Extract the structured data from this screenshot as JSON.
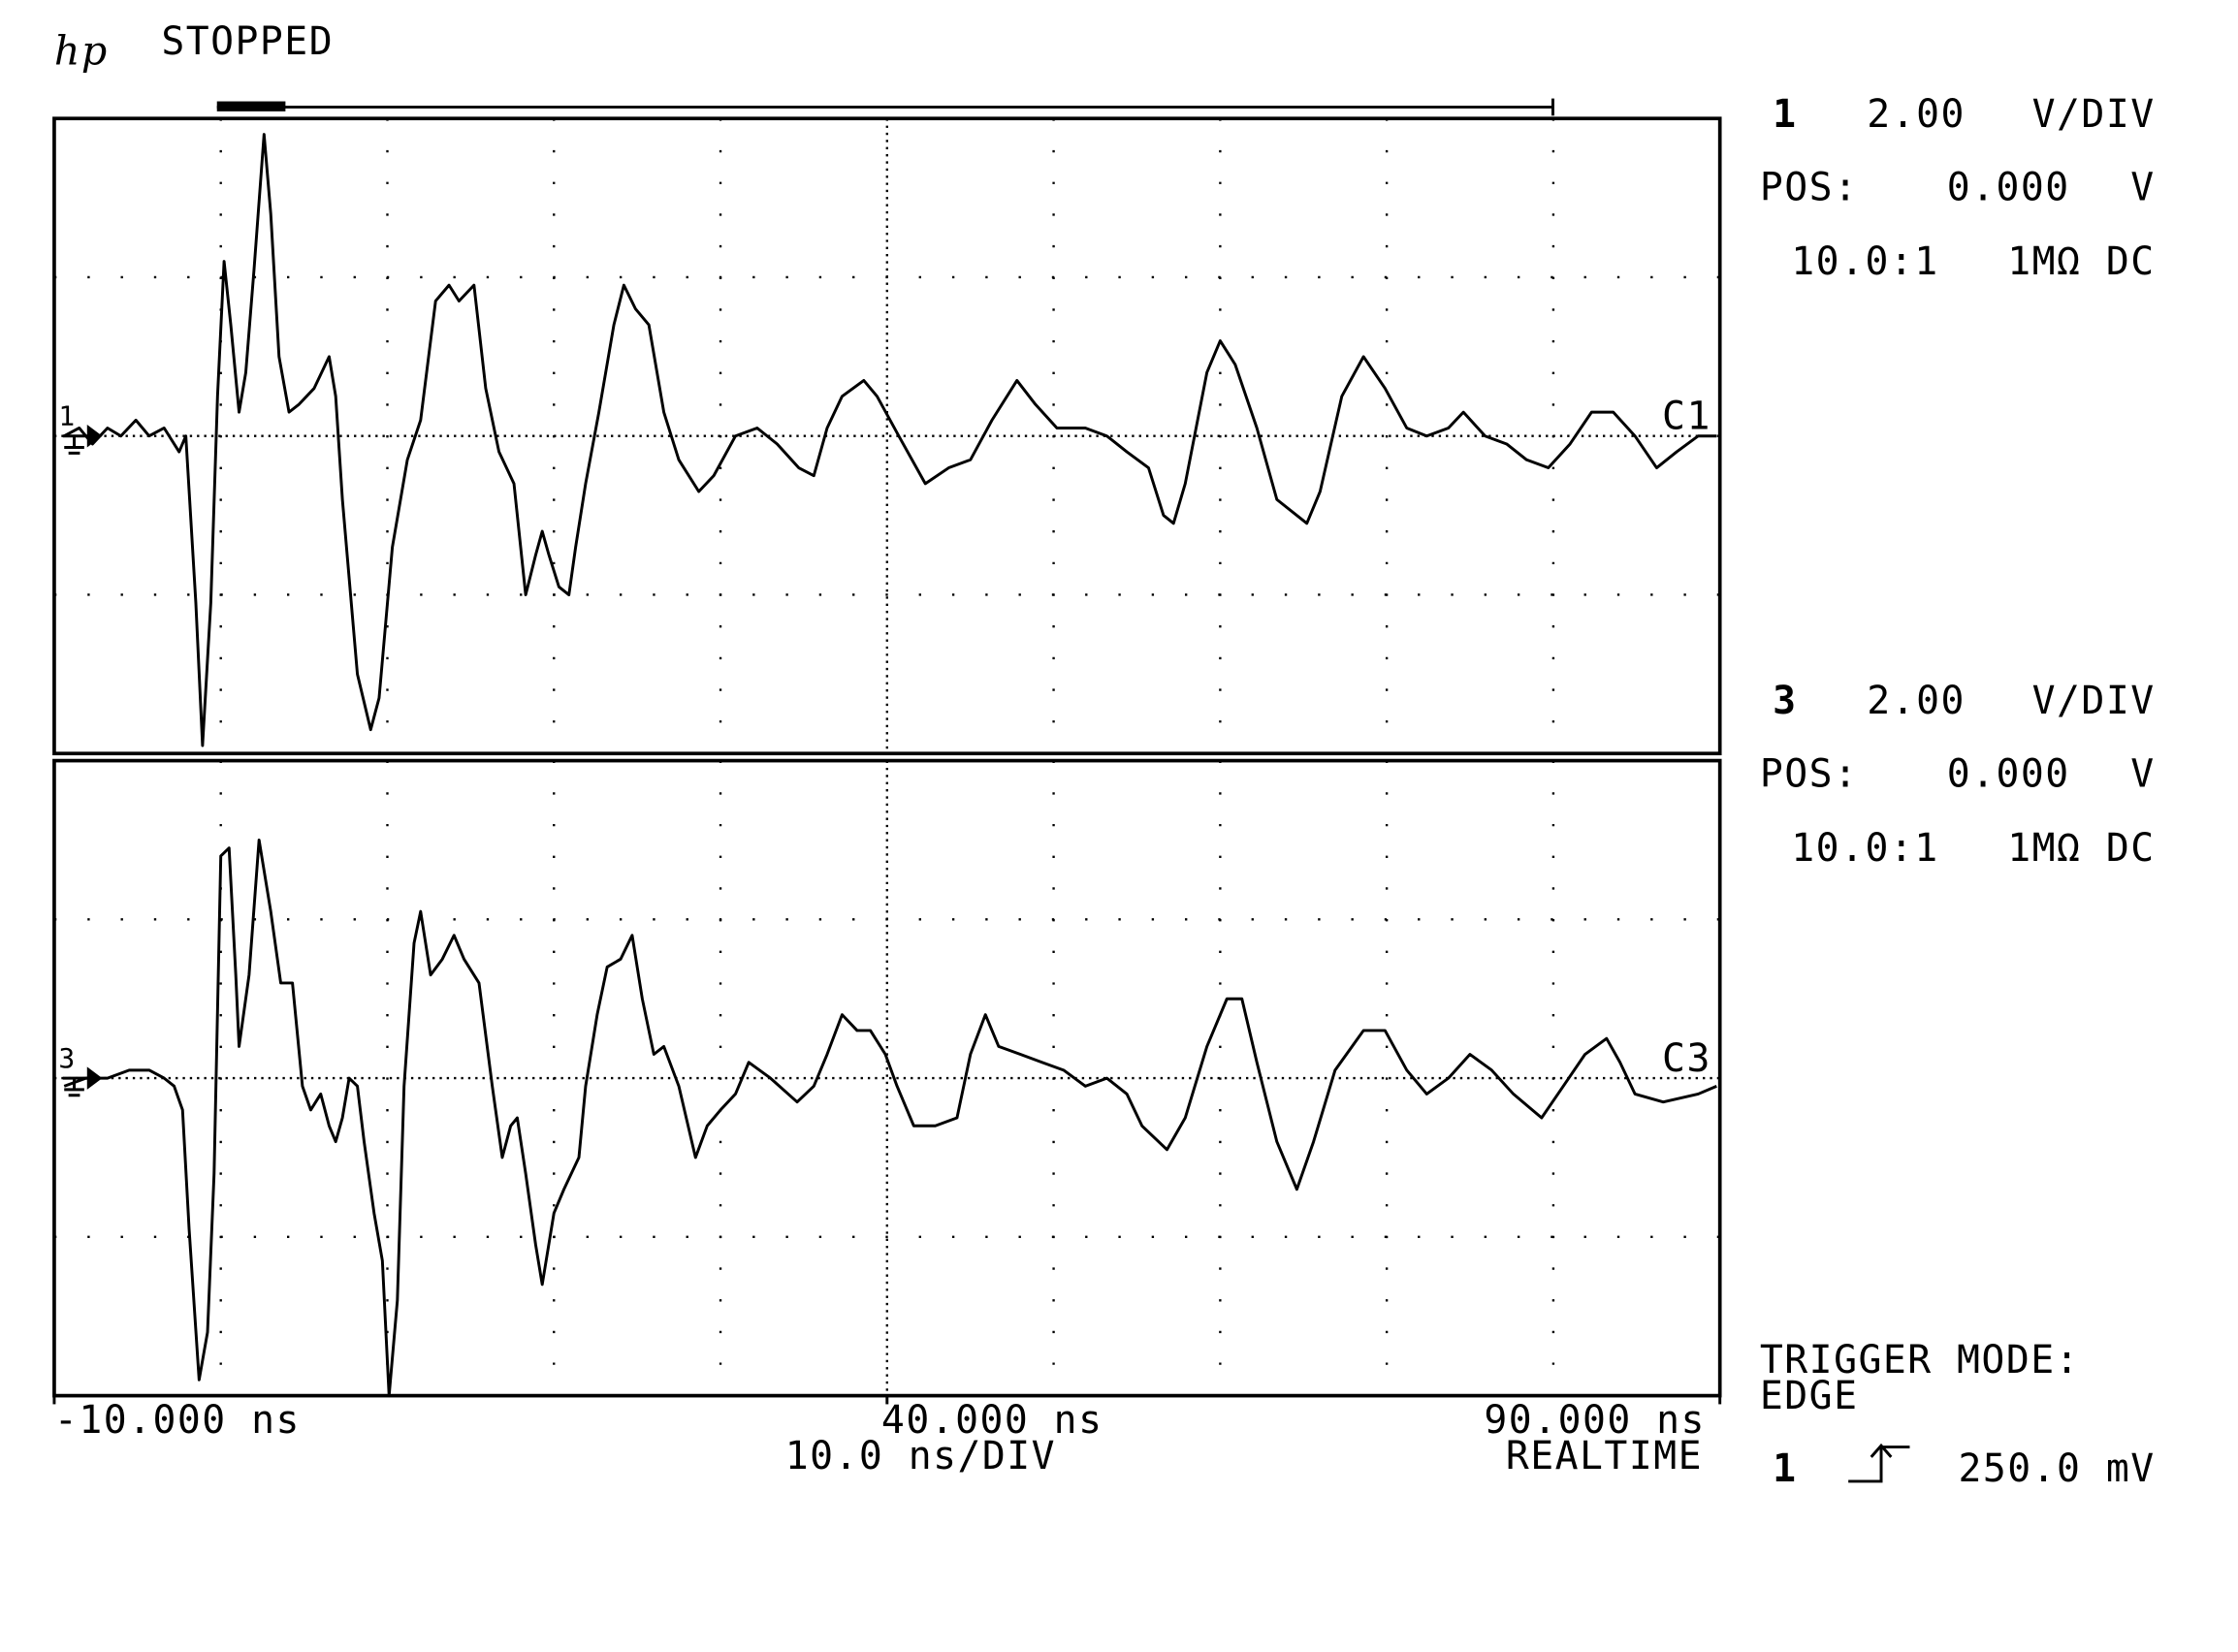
{
  "header": {
    "logo": "hp",
    "status": "STOPPED"
  },
  "channels": [
    {
      "number": "1",
      "scale": "2.00",
      "scale_unit": "V/DIV",
      "pos_label": "POS:",
      "pos": "0.000",
      "pos_unit": "V",
      "probe": "10.0:1",
      "coupling": "1MΩ DC"
    },
    {
      "number": "3",
      "scale": "2.00",
      "scale_unit": "V/DIV",
      "pos_label": "POS:",
      "pos": "0.000",
      "pos_unit": "V",
      "probe": "10.0:1",
      "coupling": "1MΩ DC"
    }
  ],
  "trigger": {
    "title": "TRIGGER MODE:",
    "mode": "EDGE",
    "source": "1",
    "level": "250.0 mV"
  },
  "timebase": {
    "scale": "10.0 ns/DIV",
    "mode": "REALTIME"
  },
  "chart_data": [
    {
      "type": "line",
      "x": [
        -9.4,
        -8.5,
        -7.7,
        -6.8,
        -6.0,
        -5.1,
        -4.3,
        -3.4,
        -2.5,
        -2.1,
        -1.5,
        -1.1,
        -0.6,
        -0.2,
        0.2,
        0.6,
        1.1,
        1.5,
        2.0,
        2.6,
        3.0,
        3.5,
        4.1,
        4.7,
        5.6,
        6.5,
        6.9,
        7.3,
        8.2,
        9.0,
        9.5,
        10.3,
        11.2,
        12.0,
        12.9,
        13.7,
        14.3,
        15.2,
        15.9,
        16.7,
        17.6,
        18.3,
        18.9,
        19.3,
        19.7,
        20.3,
        20.9,
        21.3,
        21.9,
        22.7,
        23.6,
        24.2,
        24.9,
        25.7,
        26.6,
        27.5,
        28.7,
        29.6,
        30.9,
        32.2,
        33.4,
        34.7,
        35.6,
        36.4,
        37.3,
        38.6,
        39.4,
        40.7,
        42.3,
        43.7,
        45.0,
        46.3,
        47.8,
        48.9,
        50.2,
        51.9,
        53.2,
        54.4,
        55.7,
        56.6,
        57.2,
        57.9,
        59.2,
        60.0,
        60.9,
        62.2,
        63.4,
        65.2,
        66.0,
        67.3,
        68.6,
        69.9,
        71.2,
        72.4,
        73.7,
        74.6,
        75.9,
        77.2,
        78.4,
        79.7,
        81.0,
        82.3,
        83.6,
        84.9,
        86.2,
        87.4,
        88.7,
        89.8
      ],
      "series": [
        {
          "name": "C1",
          "color": "#000000",
          "values": [
            0,
            0.1,
            -0.1,
            0.1,
            0,
            0.2,
            0,
            0.1,
            -0.2,
            0,
            -2.1,
            -3.9,
            -2.1,
            0.5,
            2.2,
            1.4,
            0.3,
            0.8,
            2.1,
            3.8,
            2.8,
            1.0,
            0.3,
            0.4,
            0.6,
            1.0,
            0.5,
            -0.8,
            -3.0,
            -3.7,
            -3.3,
            -1.4,
            -0.3,
            0.2,
            1.7,
            1.9,
            1.7,
            1.9,
            0.6,
            -0.2,
            -0.6,
            -2.0,
            -1.5,
            -1.2,
            -1.5,
            -1.9,
            -2.0,
            -1.4,
            -0.6,
            0.3,
            1.4,
            1.9,
            1.6,
            1.4,
            0.3,
            -0.3,
            -0.7,
            -0.5,
            0,
            0.1,
            -0.1,
            -0.4,
            -0.5,
            0.1,
            0.5,
            0.7,
            0.5,
            0,
            -0.6,
            -0.4,
            -0.3,
            0.2,
            0.7,
            0.4,
            0.1,
            0.1,
            0,
            -0.2,
            -0.4,
            -1.0,
            -1.1,
            -0.6,
            0.8,
            1.2,
            0.9,
            0.1,
            -0.8,
            -1.1,
            -0.7,
            0.5,
            1.0,
            0.6,
            0.1,
            0,
            0.1,
            0.3,
            0,
            -0.1,
            -0.3,
            -0.4,
            -0.1,
            0.3,
            0.3,
            0,
            -0.4,
            -0.2,
            0,
            0
          ]
        }
      ],
      "xlim": [
        -10,
        90
      ],
      "ylim": [
        -4,
        4
      ]
    },
    {
      "type": "line",
      "x": [
        -9.4,
        -8.1,
        -6.8,
        -5.5,
        -4.3,
        -3.4,
        -2.8,
        -2.3,
        -1.9,
        -1.3,
        -0.8,
        -0.4,
        0.0,
        0.5,
        0.9,
        1.1,
        1.7,
        2.3,
        3.0,
        3.6,
        4.3,
        4.9,
        5.4,
        6.0,
        6.5,
        6.9,
        7.3,
        7.7,
        8.2,
        8.6,
        9.2,
        9.7,
        10.1,
        10.6,
        11.0,
        11.6,
        12.0,
        12.6,
        13.3,
        14.0,
        14.6,
        15.5,
        16.3,
        16.9,
        17.4,
        17.8,
        18.3,
        18.9,
        19.3,
        20.0,
        20.6,
        21.5,
        21.9,
        22.6,
        23.2,
        24.0,
        24.7,
        25.3,
        26.0,
        26.6,
        27.5,
        28.5,
        29.2,
        30.0,
        30.9,
        31.7,
        33.0,
        34.6,
        35.6,
        36.4,
        37.3,
        38.2,
        39.0,
        39.9,
        40.6,
        41.6,
        42.9,
        44.2,
        45.0,
        45.9,
        46.7,
        48.0,
        49.3,
        50.6,
        51.9,
        53.2,
        54.4,
        55.3,
        56.8,
        57.9,
        59.2,
        60.4,
        61.3,
        62.2,
        63.4,
        64.6,
        65.6,
        66.9,
        68.6,
        69.9,
        71.2,
        72.4,
        73.7,
        75.0,
        76.3,
        77.6,
        79.3,
        80.6,
        81.9,
        83.2,
        84.0,
        84.9,
        86.6,
        88.7,
        89.8
      ],
      "series": [
        {
          "name": "C3",
          "color": "#000000",
          "values": [
            -0.1,
            0,
            0,
            0.1,
            0.1,
            0,
            -0.1,
            -0.4,
            -1.9,
            -3.8,
            -3.2,
            -1.2,
            2.8,
            2.9,
            1.3,
            0.4,
            1.3,
            3.0,
            2.1,
            1.2,
            1.2,
            -0.1,
            -0.4,
            -0.2,
            -0.6,
            -0.8,
            -0.5,
            0,
            -0.1,
            -0.8,
            -1.7,
            -2.3,
            -4.0,
            -2.8,
            -0.1,
            1.7,
            2.1,
            1.3,
            1.5,
            1.8,
            1.5,
            1.2,
            -0.1,
            -1.0,
            -0.6,
            -0.5,
            -1.2,
            -2.1,
            -2.6,
            -1.7,
            -1.4,
            -1.0,
            -0.1,
            0.8,
            1.4,
            1.5,
            1.8,
            1.0,
            0.3,
            0.4,
            -0.1,
            -1.0,
            -0.6,
            -0.4,
            -0.2,
            0.2,
            0,
            -0.3,
            -0.1,
            0.3,
            0.8,
            0.6,
            0.6,
            0.3,
            -0.1,
            -0.6,
            -0.6,
            -0.5,
            0.3,
            0.8,
            0.4,
            0.3,
            0.2,
            0.1,
            -0.1,
            0,
            -0.2,
            -0.6,
            -0.9,
            -0.5,
            0.4,
            1.0,
            1.0,
            0.2,
            -0.8,
            -1.4,
            -0.8,
            0.1,
            0.6,
            0.6,
            0.1,
            -0.2,
            0,
            0.3,
            0.1,
            -0.2,
            -0.5,
            -0.1,
            0.3,
            0.5,
            0.2,
            -0.2,
            -0.3,
            -0.2,
            -0.1
          ]
        }
      ],
      "xlim": [
        -10,
        90
      ],
      "ylim": [
        -4,
        4
      ],
      "xticks": [
        {
          "value": -10,
          "label": "-10.000 ns"
        },
        {
          "value": 40,
          "label": "40.000 ns"
        },
        {
          "value": 90,
          "label": "90.000 ns"
        }
      ]
    }
  ]
}
